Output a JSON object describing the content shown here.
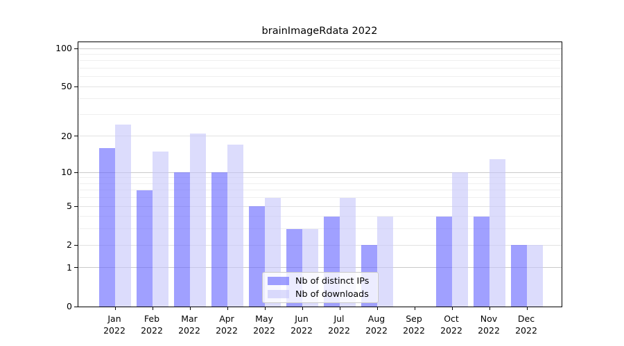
{
  "chart_data": {
    "type": "bar",
    "title": "brainImageRdata 2022",
    "categories": [
      "Jan",
      "Feb",
      "Mar",
      "Apr",
      "May",
      "Jun",
      "Jul",
      "Aug",
      "Sep",
      "Oct",
      "Nov",
      "Dec"
    ],
    "year_label": "2022",
    "series": [
      {
        "name": "Nb of distinct IPs",
        "color": "rgba(102,102,255,0.62)",
        "solid_color": "#a1a1f2",
        "values": [
          16,
          7,
          10,
          10,
          5,
          3,
          4,
          2,
          0,
          4,
          4,
          2
        ]
      },
      {
        "name": "Nb of downloads",
        "color": "rgba(198,198,250,0.62)",
        "solid_color": "#dcdcf8",
        "values": [
          25,
          15,
          21,
          17,
          6,
          3,
          6,
          4,
          0,
          10,
          13,
          2
        ]
      }
    ],
    "y_axis": {
      "scale": "log1p",
      "tick_labels": [
        0,
        1,
        2,
        5,
        10,
        20,
        50,
        100
      ],
      "power_of_ten_gridlines": [
        1,
        10,
        100
      ],
      "mid_gridlines": [
        2,
        5,
        20,
        50
      ],
      "minor_gridlines": [
        3,
        4,
        6,
        7,
        8,
        9,
        30,
        40,
        60,
        70,
        80,
        90
      ],
      "ylim": [
        0,
        100
      ]
    },
    "x_axis": {
      "label_lines": 2
    },
    "legend": {
      "position": "lower-center",
      "frame": true
    },
    "grid": true,
    "background_color": "#ffffff",
    "spine_color": "#000000"
  }
}
